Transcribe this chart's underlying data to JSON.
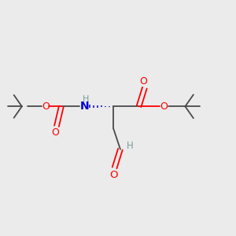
{
  "background_color": "#ebebeb",
  "bond_color": "#4a4a4a",
  "O_color": "#ff0000",
  "N_color": "#0000cc",
  "H_color": "#7a9a9a",
  "fig_size": [
    3.0,
    3.0
  ],
  "dpi": 100,
  "xlim": [
    0,
    10
  ],
  "ylim": [
    0,
    10
  ]
}
